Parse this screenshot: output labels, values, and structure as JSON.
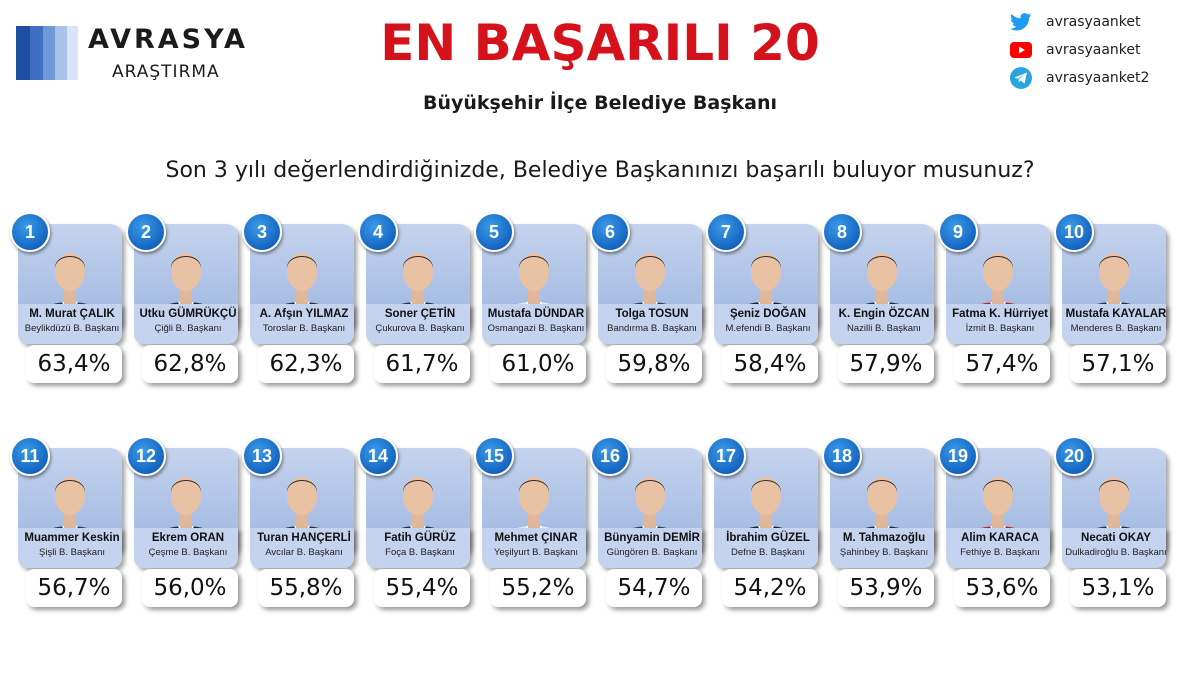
{
  "logo": {
    "name": "AVRASYA",
    "sub": "ARAŞTIRMA",
    "bar_colors": [
      "#1e4fa3",
      "#3e6fc0",
      "#6f98d8",
      "#a9c2ea",
      "#d9e5f7"
    ]
  },
  "header": {
    "title": "EN BAŞARILI 20",
    "subtitle": "Büyükşehir İlçe Belediye Başkanı",
    "question": "Son 3 yılı değerlendirdiğinizde, Belediye Başkanınızı başarılı buluyor musunuz?"
  },
  "social": [
    {
      "icon": "twitter-icon",
      "color": "#1d9bf0",
      "handle": "avrasyaanket"
    },
    {
      "icon": "youtube-icon",
      "color": "#ff0000",
      "handle": "avrasyaanket"
    },
    {
      "icon": "telegram-icon",
      "color": "#2aa3df",
      "handle": "avrasyaanket2"
    }
  ],
  "colors": {
    "title": "#d5121c",
    "rank_badge": "#1565c0",
    "card_bg": "#c4d3ee"
  },
  "mayors": [
    {
      "rank": "1",
      "name": "M. Murat ÇALIK",
      "office": "Beylikdüzü B. Başkanı",
      "percent": "63,4%"
    },
    {
      "rank": "2",
      "name": "Utku GÜMRÜKÇÜ",
      "office": "Çiğli B. Başkanı",
      "percent": "62,8%"
    },
    {
      "rank": "3",
      "name": "A. Afşın YILMAZ",
      "office": "Toroslar B. Başkanı",
      "percent": "62,3%"
    },
    {
      "rank": "4",
      "name": "Soner ÇETİN",
      "office": "Çukurova B. Başkanı",
      "percent": "61,7%"
    },
    {
      "rank": "5",
      "name": "Mustafa DÜNDAR",
      "office": "Osmangazi B. Başkanı",
      "percent": "61,0%"
    },
    {
      "rank": "6",
      "name": "Tolga TOSUN",
      "office": "Bandırma B. Başkanı",
      "percent": "59,8%"
    },
    {
      "rank": "7",
      "name": "Şeniz DOĞAN",
      "office": "M.efendi B. Başkanı",
      "percent": "58,4%"
    },
    {
      "rank": "8",
      "name": "K. Engin ÖZCAN",
      "office": "Nazilli B. Başkanı",
      "percent": "57,9%"
    },
    {
      "rank": "9",
      "name": "Fatma K. Hürriyet",
      "office": "İzmit B. Başkanı",
      "percent": "57,4%"
    },
    {
      "rank": "10",
      "name": "Mustafa KAYALAR",
      "office": "Menderes B. Başkanı",
      "percent": "57,1%"
    },
    {
      "rank": "11",
      "name": "Muammer Keskin",
      "office": "Şişli B. Başkanı",
      "percent": "56,7%"
    },
    {
      "rank": "12",
      "name": "Ekrem ORAN",
      "office": "Çeşme B. Başkanı",
      "percent": "56,0%"
    },
    {
      "rank": "13",
      "name": "Turan HANÇERLİ",
      "office": "Avcılar B. Başkanı",
      "percent": "55,8%"
    },
    {
      "rank": "14",
      "name": "Fatih GÜRÜZ",
      "office": "Foça B. Başkanı",
      "percent": "55,4%"
    },
    {
      "rank": "15",
      "name": "Mehmet ÇINAR",
      "office": "Yeşilyurt B. Başkanı",
      "percent": "55,2%"
    },
    {
      "rank": "16",
      "name": "Bünyamin DEMİR",
      "office": "Güngören B. Başkanı",
      "percent": "54,7%"
    },
    {
      "rank": "17",
      "name": "İbrahim GÜZEL",
      "office": "Defne B. Başkanı",
      "percent": "54,2%"
    },
    {
      "rank": "18",
      "name": "M. Tahmazoğlu",
      "office": "Şahinbey B. Başkanı",
      "percent": "53,9%"
    },
    {
      "rank": "19",
      "name": "Alim KARACA",
      "office": "Fethiye B. Başkanı",
      "percent": "53,6%"
    },
    {
      "rank": "20",
      "name": "Necati OKAY",
      "office": "Dulkadiroğlu B. Başkanı",
      "percent": "53,1%"
    }
  ]
}
